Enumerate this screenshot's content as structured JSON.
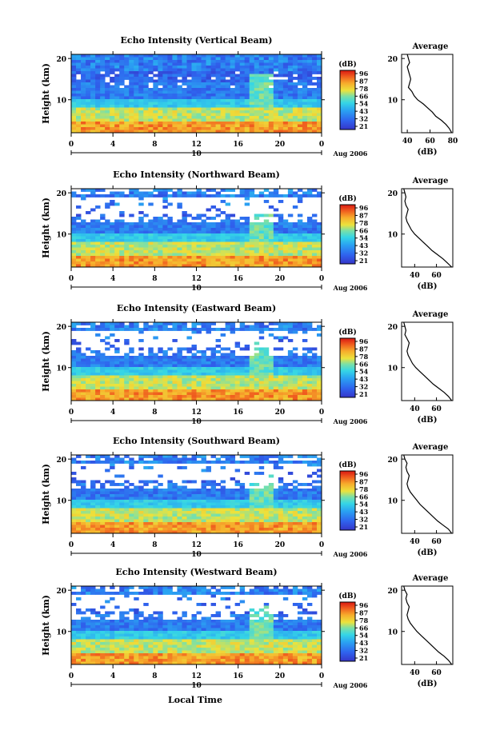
{
  "figure": {
    "x_axis_title": "Local Time",
    "date_label": "Aug 2006",
    "day_label": "10",
    "colorbar_unit": "(dB)",
    "colorbar_ticks": [
      "96",
      "87",
      "78",
      "66",
      "54",
      "43",
      "32",
      "21"
    ],
    "profile_title": "Average",
    "profile_xlabel": "(dB)"
  },
  "chart_data": [
    {
      "type": "heatmap",
      "title": "Echo Intensity (Vertical Beam)",
      "ylabel": "Height (km)",
      "x_ticks": [
        "0",
        "4",
        "8",
        "12",
        "16",
        "20",
        "0"
      ],
      "y_ticks": [
        "20",
        "10"
      ],
      "xlim": [
        0,
        24
      ],
      "ylim": [
        2,
        21
      ],
      "colorbar": {
        "unit": "(dB)",
        "ticks": [
          "96",
          "87",
          "78",
          "66",
          "54",
          "43",
          "32",
          "21"
        ]
      },
      "profile": {
        "title": "Average",
        "x_ticks": [
          "40",
          "60",
          "80"
        ],
        "xlim": [
          35,
          80
        ],
        "y_ticks": [
          "20",
          "10"
        ],
        "xlabel": "(dB)",
        "points": [
          [
            79,
            2
          ],
          [
            77,
            3
          ],
          [
            74,
            4
          ],
          [
            70,
            5
          ],
          [
            65,
            6
          ],
          [
            62,
            7
          ],
          [
            58,
            8
          ],
          [
            54,
            9
          ],
          [
            49,
            10
          ],
          [
            46,
            11
          ],
          [
            44,
            12
          ],
          [
            41,
            13
          ],
          [
            42,
            14
          ],
          [
            43,
            15
          ],
          [
            42,
            16
          ],
          [
            41,
            17
          ],
          [
            40,
            18
          ],
          [
            42,
            19
          ],
          [
            41,
            20
          ],
          [
            40,
            21
          ]
        ]
      }
    },
    {
      "type": "heatmap",
      "title": "Echo Intensity (Northward Beam)",
      "ylabel": "Height (km)",
      "x_ticks": [
        "0",
        "4",
        "8",
        "12",
        "16",
        "20",
        "0"
      ],
      "y_ticks": [
        "20",
        "10"
      ],
      "xlim": [
        0,
        24
      ],
      "ylim": [
        2,
        21
      ],
      "colorbar": {
        "unit": "(dB)",
        "ticks": [
          "96",
          "87",
          "78",
          "66",
          "54",
          "43",
          "32",
          "21"
        ]
      },
      "profile": {
        "title": "Average",
        "x_ticks": [
          "40",
          "60"
        ],
        "xlim": [
          28,
          75
        ],
        "y_ticks": [
          "20",
          "10"
        ],
        "xlabel": "(dB)",
        "points": [
          [
            74,
            2
          ],
          [
            70,
            3
          ],
          [
            66,
            4
          ],
          [
            61,
            5
          ],
          [
            56,
            6
          ],
          [
            52,
            7
          ],
          [
            48,
            8
          ],
          [
            44,
            9
          ],
          [
            40,
            10
          ],
          [
            37,
            11
          ],
          [
            35,
            12
          ],
          [
            33,
            13
          ],
          [
            32,
            14
          ],
          [
            33,
            15
          ],
          [
            34,
            16
          ],
          [
            32,
            17
          ],
          [
            31,
            18
          ],
          [
            32,
            19
          ],
          [
            31,
            20
          ],
          [
            30,
            21
          ]
        ]
      }
    },
    {
      "type": "heatmap",
      "title": "Echo Intensity (Eastward Beam)",
      "ylabel": "Height (km)",
      "x_ticks": [
        "0",
        "4",
        "8",
        "12",
        "16",
        "20",
        "0"
      ],
      "y_ticks": [
        "20",
        "10"
      ],
      "xlim": [
        0,
        24
      ],
      "ylim": [
        2,
        21
      ],
      "colorbar": {
        "unit": "(dB)",
        "ticks": [
          "96",
          "87",
          "78",
          "66",
          "54",
          "43",
          "32",
          "21"
        ]
      },
      "profile": {
        "title": "Average",
        "x_ticks": [
          "40",
          "60"
        ],
        "xlim": [
          28,
          75
        ],
        "y_ticks": [
          "20",
          "10"
        ],
        "xlabel": "(dB)",
        "points": [
          [
            74,
            2
          ],
          [
            71,
            3
          ],
          [
            67,
            4
          ],
          [
            62,
            5
          ],
          [
            57,
            6
          ],
          [
            53,
            7
          ],
          [
            49,
            8
          ],
          [
            45,
            9
          ],
          [
            41,
            10
          ],
          [
            38,
            11
          ],
          [
            36,
            12
          ],
          [
            34,
            13
          ],
          [
            33,
            14
          ],
          [
            34,
            15
          ],
          [
            35,
            16
          ],
          [
            33,
            17
          ],
          [
            31,
            18
          ],
          [
            32,
            19
          ],
          [
            31,
            20
          ],
          [
            30,
            21
          ]
        ]
      }
    },
    {
      "type": "heatmap",
      "title": "Echo Intensity (Southward Beam)",
      "ylabel": "Height (km)",
      "x_ticks": [
        "0",
        "4",
        "8",
        "12",
        "16",
        "20",
        "0"
      ],
      "y_ticks": [
        "20",
        "10"
      ],
      "xlim": [
        0,
        24
      ],
      "ylim": [
        2,
        21
      ],
      "colorbar": {
        "unit": "(dB)",
        "ticks": [
          "96",
          "87",
          "78",
          "66",
          "54",
          "43",
          "32",
          "21"
        ]
      },
      "profile": {
        "title": "Average",
        "x_ticks": [
          "40",
          "60"
        ],
        "xlim": [
          28,
          75
        ],
        "y_ticks": [
          "20",
          "10"
        ],
        "xlabel": "(dB)",
        "points": [
          [
            74,
            2
          ],
          [
            71,
            3
          ],
          [
            66,
            4
          ],
          [
            61,
            5
          ],
          [
            57,
            6
          ],
          [
            53,
            7
          ],
          [
            49,
            8
          ],
          [
            45,
            9
          ],
          [
            42,
            10
          ],
          [
            39,
            11
          ],
          [
            36,
            12
          ],
          [
            34,
            13
          ],
          [
            33,
            14
          ],
          [
            34,
            15
          ],
          [
            35,
            16
          ],
          [
            33,
            17
          ],
          [
            32,
            18
          ],
          [
            33,
            19
          ],
          [
            31,
            20
          ],
          [
            30,
            21
          ]
        ]
      }
    },
    {
      "type": "heatmap",
      "title": "Echo Intensity (Westward Beam)",
      "ylabel": "Height (km)",
      "x_ticks": [
        "0",
        "4",
        "8",
        "12",
        "16",
        "20",
        "0"
      ],
      "y_ticks": [
        "20",
        "10"
      ],
      "xlim": [
        0,
        24
      ],
      "ylim": [
        2,
        21
      ],
      "colorbar": {
        "unit": "(dB)",
        "ticks": [
          "96",
          "87",
          "78",
          "66",
          "54",
          "43",
          "32",
          "21"
        ]
      },
      "profile": {
        "title": "Average",
        "x_ticks": [
          "40",
          "60"
        ],
        "xlim": [
          28,
          75
        ],
        "y_ticks": [
          "20",
          "10"
        ],
        "xlabel": "(dB)",
        "points": [
          [
            74,
            2
          ],
          [
            71,
            3
          ],
          [
            67,
            4
          ],
          [
            62,
            5
          ],
          [
            58,
            6
          ],
          [
            54,
            7
          ],
          [
            50,
            8
          ],
          [
            46,
            9
          ],
          [
            42,
            10
          ],
          [
            39,
            11
          ],
          [
            36,
            12
          ],
          [
            34,
            13
          ],
          [
            33,
            14
          ],
          [
            34,
            15
          ],
          [
            35,
            16
          ],
          [
            33,
            17
          ],
          [
            32,
            18
          ],
          [
            33,
            19
          ],
          [
            31,
            20
          ],
          [
            30,
            21
          ]
        ]
      }
    }
  ]
}
